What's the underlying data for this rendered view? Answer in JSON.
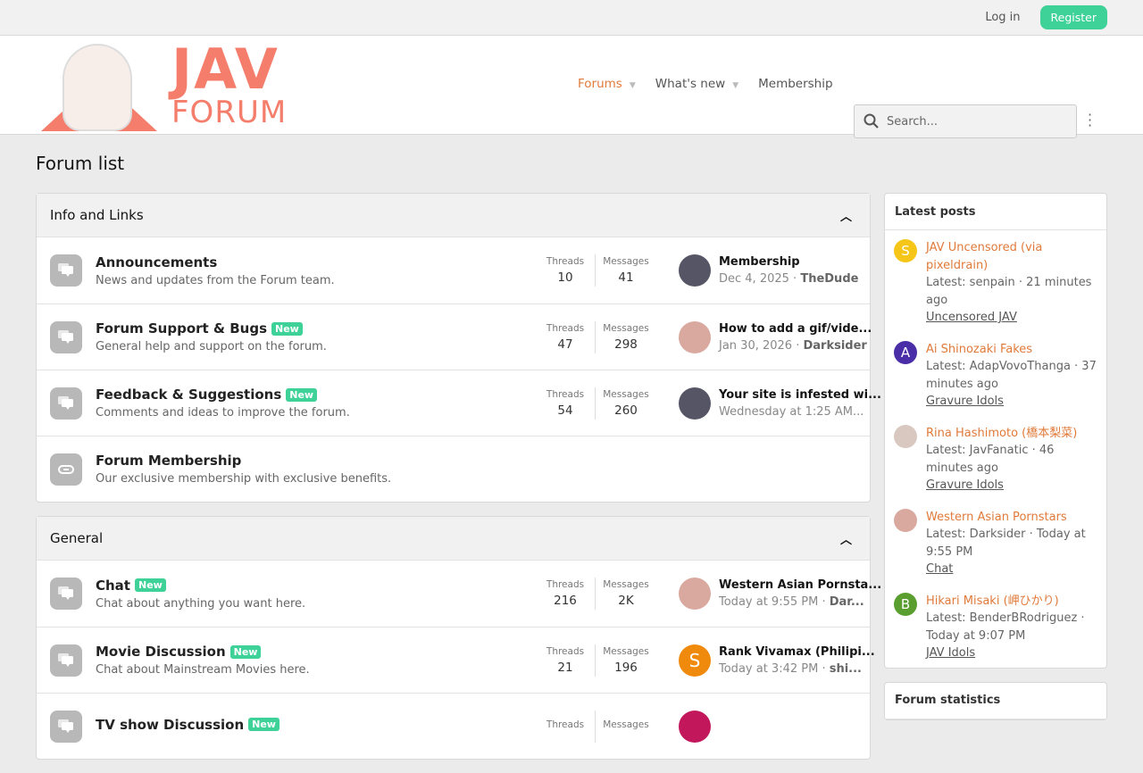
{
  "topbar": {
    "login": "Log in",
    "register": "Register"
  },
  "logo": {
    "line1": "JAV",
    "line2": "FORUM"
  },
  "nav": {
    "items": [
      {
        "label": "Forums",
        "dropdown": true
      },
      {
        "label": "What's new",
        "dropdown": true
      },
      {
        "label": "Membership",
        "dropdown": false
      }
    ]
  },
  "search": {
    "placeholder": "Search..."
  },
  "page_title": "Forum list",
  "colors": {
    "accent": "#e07a3a",
    "new_badge": "#3ed198",
    "logo": "#f47e6b"
  },
  "categories": [
    {
      "title": "Info and Links",
      "forums": [
        {
          "title": "Announcements",
          "new": "",
          "desc": "News and updates from the Forum team.",
          "threads_label": "Threads",
          "threads": "10",
          "messages_label": "Messages",
          "messages": "41",
          "avatar_color": "#556",
          "avatar_letter": "",
          "last_title": "Membership",
          "last_date": "Dec 4, 2025",
          "last_user": "TheDude"
        },
        {
          "title": "Forum Support & Bugs",
          "new": "New",
          "desc": "General help and support on the forum.",
          "threads_label": "Threads",
          "threads": "47",
          "messages_label": "Messages",
          "messages": "298",
          "avatar_color": "#d9a9a0",
          "avatar_letter": "",
          "last_title": "How to add a gif/vide...",
          "last_date": "Jan 30, 2026",
          "last_user": "Darksider"
        },
        {
          "title": "Feedback & Suggestions",
          "new": "New",
          "desc": "Comments and ideas to improve the forum.",
          "threads_label": "Threads",
          "threads": "54",
          "messages_label": "Messages",
          "messages": "260",
          "avatar_color": "#556",
          "avatar_letter": "",
          "last_title": "Your site is infested wi...",
          "last_date": "Wednesday at 1:25 AM...",
          "last_user": ""
        },
        {
          "title": "Forum Membership",
          "new": "",
          "desc": "Our exclusive membership with exclusive benefits.",
          "link": true
        }
      ]
    },
    {
      "title": "General",
      "forums": [
        {
          "title": "Chat",
          "new": "New",
          "desc": "Chat about anything you want here.",
          "threads_label": "Threads",
          "threads": "216",
          "messages_label": "Messages",
          "messages": "2K",
          "avatar_color": "#d9a9a0",
          "avatar_letter": "",
          "last_title": "Western Asian Pornsta...",
          "last_date": "Today at 9:55 PM",
          "last_user": "Dar..."
        },
        {
          "title": "Movie Discussion",
          "new": "New",
          "desc": "Chat about Mainstream Movies here.",
          "threads_label": "Threads",
          "threads": "21",
          "messages_label": "Messages",
          "messages": "196",
          "avatar_color": "#f08a0c",
          "avatar_letter": "S",
          "last_title": "Rank Vivamax (Philipi...",
          "last_date": "Today at 3:42 PM",
          "last_user": "shi..."
        },
        {
          "title": "TV show Discussion",
          "new": "New",
          "desc": "",
          "threads_label": "Threads",
          "threads": "",
          "messages_label": "Messages",
          "messages": "",
          "avatar_color": "#c2185b",
          "avatar_letter": "",
          "last_title": "",
          "last_date": "",
          "last_user": ""
        }
      ]
    }
  ],
  "sidebar": {
    "latest_title": "Latest posts",
    "posts": [
      {
        "title": "JAV Uncensored (via pixeldrain)",
        "meta": "Latest: senpain · 21 minutes ago",
        "forum": "Uncensored JAV",
        "avatar_color": "#f5c518",
        "letter": "S"
      },
      {
        "title": "Ai Shinozaki Fakes",
        "meta": "Latest: AdapVovoThanga · 37 minutes ago",
        "forum": "Gravure Idols",
        "avatar_color": "#4a2ea8",
        "letter": "A"
      },
      {
        "title": "Rina Hashimoto (橋本梨菜)",
        "meta": "Latest: JavFanatic · 46 minutes ago",
        "forum": "Gravure Idols",
        "avatar_color": "#d8c8c0",
        "letter": ""
      },
      {
        "title": "Western Asian Pornstars",
        "meta": "Latest: Darksider · Today at 9:55 PM",
        "forum": "Chat",
        "avatar_color": "#d9a9a0",
        "letter": ""
      },
      {
        "title": "Hikari Misaki (岬ひかり)",
        "meta": "Latest: BenderBRodriguez · Today at 9:07 PM",
        "forum": "JAV Idols",
        "avatar_color": "#5a9e2f",
        "letter": "B"
      }
    ],
    "stats_title": "Forum statistics"
  }
}
